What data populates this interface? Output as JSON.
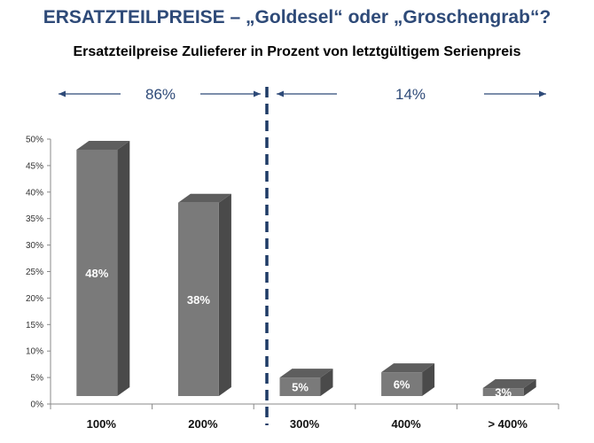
{
  "title": "ERSATZTEILPREISE – „Goldesel“ oder „Groschengrab“?",
  "subtitle": "Ersatzteilpreise Zulieferer in Prozent von letztgültigem Serienpreis",
  "groups": [
    {
      "label": "86%"
    },
    {
      "label": "14%"
    }
  ],
  "colors": {
    "bar_front": "#7a7a7a",
    "bar_top": "#5e5e5e",
    "bar_side": "#4a4a4a",
    "divider": "#1f3b66",
    "group_label": "#2e4a78",
    "arrow": "#2e4a78"
  },
  "chart_data": {
    "type": "bar",
    "categories": [
      "100%",
      "200%",
      "300%",
      "400%",
      "> 400%"
    ],
    "values": [
      48,
      38,
      5,
      6,
      3
    ],
    "data_labels": [
      "48%",
      "38%",
      "5%",
      "6%",
      "3%"
    ],
    "ylim": [
      0,
      50
    ],
    "yticks": [
      "0%",
      "5%",
      "10%",
      "15%",
      "20%",
      "25%",
      "30%",
      "35%",
      "40%",
      "45%",
      "50%"
    ],
    "xlabel": "",
    "ylabel": ""
  }
}
